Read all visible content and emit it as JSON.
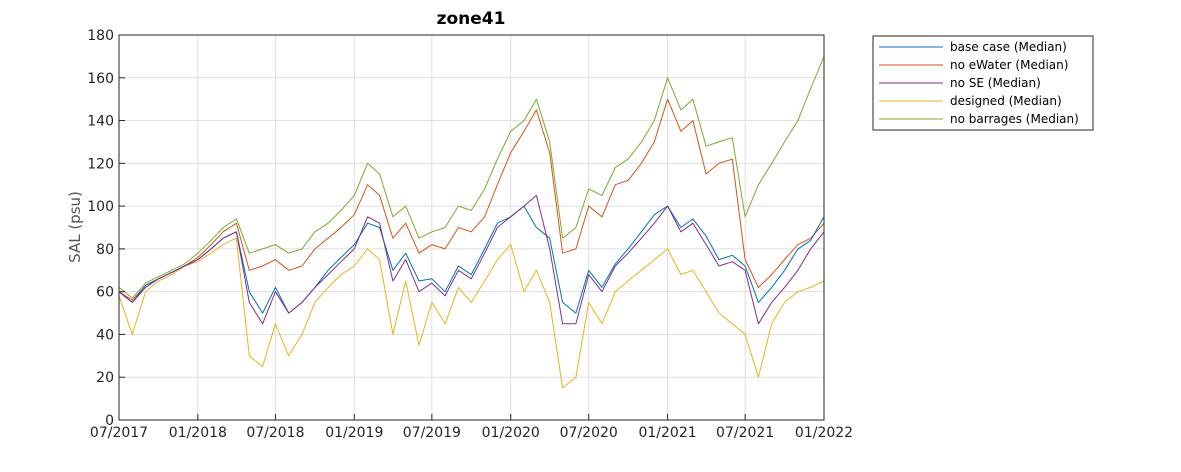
{
  "chart_data": {
    "type": "line",
    "title": "zone41",
    "xlabel": "",
    "ylabel": "SAL (psu)",
    "x_range": [
      "2017-07-01",
      "2022-01-01"
    ],
    "ylim": [
      0,
      180
    ],
    "yticks": [
      0,
      20,
      40,
      60,
      80,
      100,
      120,
      140,
      160,
      180
    ],
    "xticks": [
      {
        "date": "2017-07-01",
        "label": "07/2017"
      },
      {
        "date": "2018-01-01",
        "label": "01/2018"
      },
      {
        "date": "2018-07-01",
        "label": "07/2018"
      },
      {
        "date": "2019-01-01",
        "label": "01/2019"
      },
      {
        "date": "2019-07-01",
        "label": "07/2019"
      },
      {
        "date": "2020-01-01",
        "label": "01/2020"
      },
      {
        "date": "2020-07-01",
        "label": "07/2020"
      },
      {
        "date": "2021-01-01",
        "label": "01/2021"
      },
      {
        "date": "2021-07-01",
        "label": "07/2021"
      },
      {
        "date": "2022-01-01",
        "label": "01/2022"
      }
    ],
    "grid": true,
    "legend_position": "outside-top-right",
    "series": [
      {
        "name": "base case (Median)",
        "color": "#0072BD",
        "x": [
          "2017-07-01",
          "2017-08-01",
          "2017-09-01",
          "2017-10-01",
          "2017-11-01",
          "2017-12-01",
          "2018-01-01",
          "2018-02-01",
          "2018-03-01",
          "2018-04-01",
          "2018-05-01",
          "2018-06-01",
          "2018-07-01",
          "2018-08-01",
          "2018-09-01",
          "2018-10-01",
          "2018-11-01",
          "2018-12-01",
          "2019-01-01",
          "2019-02-01",
          "2019-03-01",
          "2019-04-01",
          "2019-05-01",
          "2019-06-01",
          "2019-07-01",
          "2019-08-01",
          "2019-09-01",
          "2019-10-01",
          "2019-11-01",
          "2019-12-01",
          "2020-01-01",
          "2020-02-01",
          "2020-03-01",
          "2020-04-01",
          "2020-05-01",
          "2020-06-01",
          "2020-07-01",
          "2020-08-01",
          "2020-09-01",
          "2020-10-01",
          "2020-11-01",
          "2020-12-01",
          "2021-01-01",
          "2021-02-01",
          "2021-03-01",
          "2021-04-01",
          "2021-05-01",
          "2021-06-01",
          "2021-07-01",
          "2021-08-01",
          "2021-09-01",
          "2021-10-01",
          "2021-11-01",
          "2021-12-01",
          "2022-01-01"
        ],
        "y": [
          60,
          55,
          63,
          66,
          69,
          72,
          75,
          80,
          85,
          88,
          60,
          50,
          62,
          50,
          55,
          62,
          70,
          76,
          82,
          92,
          90,
          70,
          78,
          65,
          66,
          60,
          72,
          68,
          80,
          92,
          95,
          100,
          90,
          85,
          55,
          50,
          70,
          62,
          73,
          80,
          88,
          96,
          100,
          90,
          94,
          86,
          75,
          77,
          72,
          55,
          62,
          70,
          80,
          84,
          95
        ]
      },
      {
        "name": "no eWater (Median)",
        "color": "#D95319",
        "x": [
          "2017-07-01",
          "2017-08-01",
          "2017-09-01",
          "2017-10-01",
          "2017-11-01",
          "2017-12-01",
          "2018-01-01",
          "2018-02-01",
          "2018-03-01",
          "2018-04-01",
          "2018-05-01",
          "2018-06-01",
          "2018-07-01",
          "2018-08-01",
          "2018-09-01",
          "2018-10-01",
          "2018-11-01",
          "2018-12-01",
          "2019-01-01",
          "2019-02-01",
          "2019-03-01",
          "2019-04-01",
          "2019-05-01",
          "2019-06-01",
          "2019-07-01",
          "2019-08-01",
          "2019-09-01",
          "2019-10-01",
          "2019-11-01",
          "2019-12-01",
          "2020-01-01",
          "2020-02-01",
          "2020-03-01",
          "2020-04-01",
          "2020-05-01",
          "2020-06-01",
          "2020-07-01",
          "2020-08-01",
          "2020-09-01",
          "2020-10-01",
          "2020-11-01",
          "2020-12-01",
          "2021-01-01",
          "2021-02-01",
          "2021-03-01",
          "2021-04-01",
          "2021-05-01",
          "2021-06-01",
          "2021-07-01",
          "2021-08-01",
          "2021-09-01",
          "2021-10-01",
          "2021-11-01",
          "2021-12-01",
          "2022-01-01"
        ],
        "y": [
          60,
          56,
          63,
          66,
          69,
          72,
          76,
          82,
          88,
          92,
          70,
          72,
          75,
          70,
          72,
          80,
          85,
          90,
          96,
          110,
          105,
          85,
          92,
          78,
          82,
          80,
          90,
          88,
          95,
          110,
          125,
          135,
          145,
          125,
          78,
          80,
          100,
          95,
          110,
          112,
          120,
          130,
          150,
          135,
          140,
          115,
          120,
          122,
          75,
          62,
          68,
          75,
          82,
          85,
          92
        ]
      },
      {
        "name": "no SE (Median)",
        "color": "#7E2F8E",
        "x": [
          "2017-07-01",
          "2017-08-01",
          "2017-09-01",
          "2017-10-01",
          "2017-11-01",
          "2017-12-01",
          "2018-01-01",
          "2018-02-01",
          "2018-03-01",
          "2018-04-01",
          "2018-05-01",
          "2018-06-01",
          "2018-07-01",
          "2018-08-01",
          "2018-09-01",
          "2018-10-01",
          "2018-11-01",
          "2018-12-01",
          "2019-01-01",
          "2019-02-01",
          "2019-03-01",
          "2019-04-01",
          "2019-05-01",
          "2019-06-01",
          "2019-07-01",
          "2019-08-01",
          "2019-09-01",
          "2019-10-01",
          "2019-11-01",
          "2019-12-01",
          "2020-01-01",
          "2020-02-01",
          "2020-03-01",
          "2020-04-01",
          "2020-05-01",
          "2020-06-01",
          "2020-07-01",
          "2020-08-01",
          "2020-09-01",
          "2020-10-01",
          "2020-11-01",
          "2020-12-01",
          "2021-01-01",
          "2021-02-01",
          "2021-03-01",
          "2021-04-01",
          "2021-05-01",
          "2021-06-01",
          "2021-07-01",
          "2021-08-01",
          "2021-09-01",
          "2021-10-01",
          "2021-11-01",
          "2021-12-01",
          "2022-01-01"
        ],
        "y": [
          60,
          55,
          62,
          66,
          69,
          72,
          75,
          80,
          85,
          88,
          55,
          45,
          60,
          50,
          55,
          62,
          68,
          74,
          80,
          95,
          92,
          65,
          75,
          60,
          64,
          58,
          70,
          66,
          78,
          90,
          95,
          100,
          105,
          80,
          45,
          45,
          68,
          60,
          72,
          78,
          85,
          92,
          100,
          88,
          92,
          82,
          72,
          74,
          70,
          45,
          55,
          62,
          70,
          80,
          88
        ]
      },
      {
        "name": "designed (Median)",
        "color": "#EDB120",
        "x": [
          "2017-07-01",
          "2017-08-01",
          "2017-09-01",
          "2017-10-01",
          "2017-11-01",
          "2017-12-01",
          "2018-01-01",
          "2018-02-01",
          "2018-03-01",
          "2018-04-01",
          "2018-05-01",
          "2018-06-01",
          "2018-07-01",
          "2018-08-01",
          "2018-09-01",
          "2018-10-01",
          "2018-11-01",
          "2018-12-01",
          "2019-01-01",
          "2019-02-01",
          "2019-03-01",
          "2019-04-01",
          "2019-05-01",
          "2019-06-01",
          "2019-07-01",
          "2019-08-01",
          "2019-09-01",
          "2019-10-01",
          "2019-11-01",
          "2019-12-01",
          "2020-01-01",
          "2020-02-01",
          "2020-03-01",
          "2020-04-01",
          "2020-05-01",
          "2020-06-01",
          "2020-07-01",
          "2020-08-01",
          "2020-09-01",
          "2020-10-01",
          "2020-11-01",
          "2020-12-01",
          "2021-01-01",
          "2021-02-01",
          "2021-03-01",
          "2021-04-01",
          "2021-05-01",
          "2021-06-01",
          "2021-07-01",
          "2021-08-01",
          "2021-09-01",
          "2021-10-01",
          "2021-11-01",
          "2021-12-01",
          "2022-01-01"
        ],
        "y": [
          58,
          40,
          60,
          65,
          68,
          72,
          74,
          78,
          82,
          85,
          30,
          25,
          45,
          30,
          40,
          55,
          62,
          68,
          72,
          80,
          75,
          40,
          65,
          35,
          55,
          45,
          62,
          55,
          65,
          75,
          82,
          60,
          70,
          55,
          15,
          20,
          55,
          45,
          60,
          65,
          70,
          75,
          80,
          68,
          70,
          60,
          50,
          45,
          40,
          20,
          45,
          55,
          60,
          62,
          65
        ]
      },
      {
        "name": "no barrages (Median)",
        "color": "#77AC30",
        "x": [
          "2017-07-01",
          "2017-08-01",
          "2017-09-01",
          "2017-10-01",
          "2017-11-01",
          "2017-12-01",
          "2018-01-01",
          "2018-02-01",
          "2018-03-01",
          "2018-04-01",
          "2018-05-01",
          "2018-06-01",
          "2018-07-01",
          "2018-08-01",
          "2018-09-01",
          "2018-10-01",
          "2018-11-01",
          "2018-12-01",
          "2019-01-01",
          "2019-02-01",
          "2019-03-01",
          "2019-04-01",
          "2019-05-01",
          "2019-06-01",
          "2019-07-01",
          "2019-08-01",
          "2019-09-01",
          "2019-10-01",
          "2019-11-01",
          "2019-12-01",
          "2020-01-01",
          "2020-02-01",
          "2020-03-01",
          "2020-04-01",
          "2020-05-01",
          "2020-06-01",
          "2020-07-01",
          "2020-08-01",
          "2020-09-01",
          "2020-10-01",
          "2020-11-01",
          "2020-12-01",
          "2021-01-01",
          "2021-02-01",
          "2021-03-01",
          "2021-04-01",
          "2021-05-01",
          "2021-06-01",
          "2021-07-01",
          "2021-08-01",
          "2021-09-01",
          "2021-10-01",
          "2021-11-01",
          "2021-12-01",
          "2022-01-01"
        ],
        "y": [
          62,
          57,
          64,
          67,
          70,
          73,
          78,
          84,
          90,
          94,
          78,
          80,
          82,
          78,
          80,
          88,
          92,
          98,
          105,
          120,
          115,
          95,
          100,
          85,
          88,
          90,
          100,
          98,
          108,
          122,
          135,
          140,
          150,
          130,
          85,
          90,
          108,
          105,
          118,
          122,
          130,
          140,
          160,
          145,
          150,
          128,
          130,
          132,
          95,
          110,
          120,
          130,
          140,
          155,
          170
        ]
      }
    ]
  }
}
